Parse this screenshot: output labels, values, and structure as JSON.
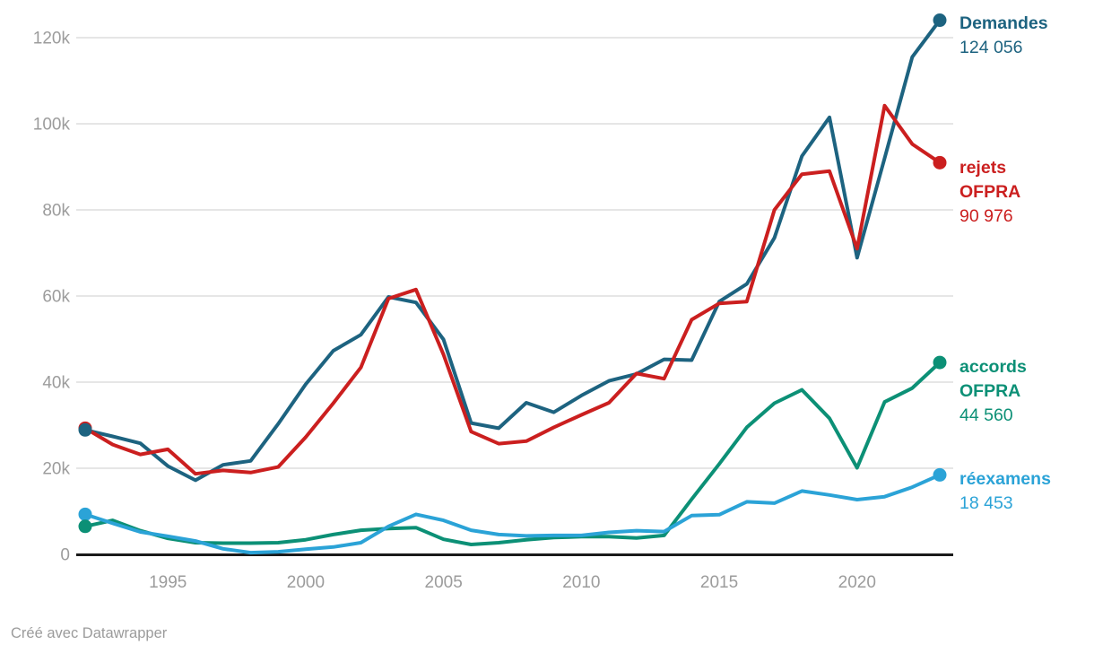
{
  "chart_data": {
    "type": "line",
    "title": "",
    "grid": "horizontal",
    "legend_position": "right-of-line-ends",
    "years": [
      1992,
      1993,
      1994,
      1995,
      1996,
      1997,
      1998,
      1999,
      2000,
      2001,
      2002,
      2003,
      2004,
      2005,
      2006,
      2007,
      2008,
      2009,
      2010,
      2011,
      2012,
      2013,
      2014,
      2015,
      2016,
      2017,
      2018,
      2019,
      2020,
      2021,
      2022,
      2023
    ],
    "x_ticks": [
      {
        "year": 1995,
        "label": "1995"
      },
      {
        "year": 2000,
        "label": "2000"
      },
      {
        "year": 2005,
        "label": "2005"
      },
      {
        "year": 2010,
        "label": "2010"
      },
      {
        "year": 2015,
        "label": "2015"
      },
      {
        "year": 2020,
        "label": "2020"
      }
    ],
    "y_ticks": [
      {
        "value": 0,
        "label": "0"
      },
      {
        "value": 20000,
        "label": "20k"
      },
      {
        "value": 40000,
        "label": "40k"
      },
      {
        "value": 60000,
        "label": "60k"
      },
      {
        "value": 80000,
        "label": "80k"
      },
      {
        "value": 100000,
        "label": "100k"
      },
      {
        "value": 120000,
        "label": "120k"
      }
    ],
    "ylim": [
      0,
      128750
    ],
    "series": [
      {
        "name": "Demandes",
        "color": "#1d6380",
        "label_line1": "Demandes",
        "label_line2": "",
        "value_label": "124 056",
        "end_value": 124056,
        "values": [
          28900,
          27400,
          25800,
          20500,
          17200,
          20800,
          21700,
          30300,
          39500,
          47300,
          51000,
          59800,
          58500,
          49900,
          30500,
          29300,
          35200,
          33000,
          36900,
          40300,
          41900,
          45300,
          45100,
          58700,
          62800,
          73500,
          92500,
          101500,
          68900,
          92000,
          115500,
          124056
        ]
      },
      {
        "name": "rejets OFPRA",
        "color": "#cb1f1f",
        "label_line1": "rejets",
        "label_line2": "OFPRA",
        "value_label": "90 976",
        "end_value": 90976,
        "values": [
          29300,
          25500,
          23200,
          24400,
          18700,
          19500,
          19000,
          20300,
          27200,
          35100,
          43400,
          59400,
          61500,
          46400,
          28500,
          25700,
          26300,
          29500,
          32400,
          35200,
          42000,
          40800,
          54500,
          58300,
          58700,
          80000,
          88300,
          89000,
          71000,
          104200,
          95300,
          90976
        ]
      },
      {
        "name": "accords OFPRA",
        "color": "#0c9076",
        "label_line1": "accords",
        "label_line2": "OFPRA",
        "value_label": "44 560",
        "end_value": 44560,
        "values": [
          6500,
          7900,
          5500,
          3700,
          2700,
          2600,
          2600,
          2700,
          3400,
          4600,
          5600,
          6000,
          6200,
          3500,
          2300,
          2700,
          3400,
          3900,
          4100,
          4100,
          3800,
          4400,
          12800,
          21000,
          29500,
          35100,
          38200,
          31600,
          20100,
          35400,
          38600,
          44560
        ]
      },
      {
        "name": "réexamens",
        "color": "#2ba3d7",
        "label_line1": "réexamens",
        "label_line2": "",
        "value_label": "18 453",
        "end_value": 18453,
        "values": [
          9300,
          7200,
          5200,
          4200,
          3100,
          1300,
          400,
          600,
          1200,
          1700,
          2700,
          6500,
          9300,
          7900,
          5600,
          4600,
          4300,
          4400,
          4400,
          5100,
          5500,
          5300,
          9000,
          9200,
          12200,
          11900,
          14700,
          13800,
          12700,
          13400,
          15600,
          18453
        ]
      }
    ],
    "colors": {
      "grid": "#e6e6e6",
      "baseline": "#1a1a1a",
      "tick_text": "#9c9c9c"
    }
  },
  "footer": {
    "credit": "Créé avec Datawrapper"
  }
}
